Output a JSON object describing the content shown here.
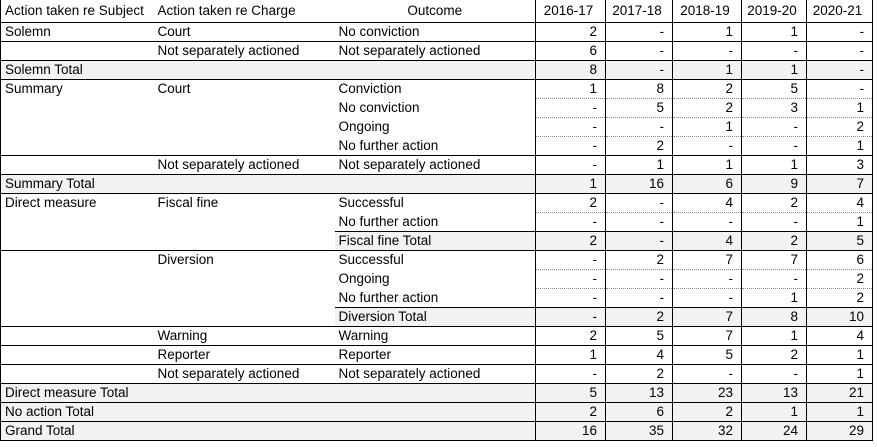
{
  "table": {
    "header": [
      "Action taken re Subject",
      "Action taken re Charge",
      "Outcome",
      "2016-17",
      "2017-18",
      "2018-19",
      "2019-20",
      "2020-21"
    ],
    "rows": [
      [
        "Solemn",
        "Court",
        "No conviction",
        2,
        "-",
        1,
        1,
        "-"
      ],
      [
        null,
        "Not separately actioned",
        "Not separately actioned",
        6,
        "-",
        "-",
        "-",
        "-"
      ],
      [
        "Solemn Total",
        null,
        null,
        8,
        "-",
        1,
        1,
        "-"
      ],
      [
        "Summary",
        "Court",
        "Conviction",
        1,
        8,
        2,
        5,
        "-"
      ],
      [
        null,
        null,
        "No conviction",
        "-",
        5,
        2,
        3,
        1
      ],
      [
        null,
        null,
        "Ongoing",
        "-",
        "-",
        1,
        "-",
        2
      ],
      [
        null,
        null,
        "No further action",
        "-",
        2,
        "-",
        "-",
        1
      ],
      [
        null,
        "Not separately actioned",
        "Not separately actioned",
        "-",
        1,
        1,
        1,
        3
      ],
      [
        "Summary Total",
        null,
        null,
        1,
        16,
        6,
        9,
        7
      ],
      [
        "Direct measure",
        "Fiscal fine",
        "Successful",
        2,
        "-",
        4,
        2,
        4
      ],
      [
        null,
        null,
        "No further action",
        "-",
        "-",
        "-",
        "-",
        1
      ],
      [
        null,
        null,
        "Fiscal fine Total",
        2,
        "-",
        4,
        2,
        5
      ],
      [
        null,
        "Diversion",
        "Successful",
        "-",
        2,
        7,
        7,
        6
      ],
      [
        null,
        null,
        "Ongoing",
        "-",
        "-",
        "-",
        "-",
        2
      ],
      [
        null,
        null,
        "No further action",
        "-",
        "-",
        "-",
        1,
        2
      ],
      [
        null,
        null,
        "Diversion Total",
        "-",
        2,
        7,
        8,
        10
      ],
      [
        null,
        "Warning",
        "Warning",
        2,
        5,
        7,
        1,
        4
      ],
      [
        null,
        "Reporter",
        "Reporter",
        1,
        4,
        5,
        2,
        1
      ],
      [
        null,
        "Not separately actioned",
        "Not separately actioned",
        "-",
        2,
        "-",
        "-",
        1
      ],
      [
        "Direct measure Total",
        null,
        null,
        5,
        13,
        23,
        13,
        21
      ],
      [
        "No action Total",
        null,
        null,
        2,
        6,
        2,
        1,
        1
      ],
      [
        "Grand Total",
        null,
        null,
        16,
        35,
        32,
        24,
        29
      ]
    ]
  }
}
